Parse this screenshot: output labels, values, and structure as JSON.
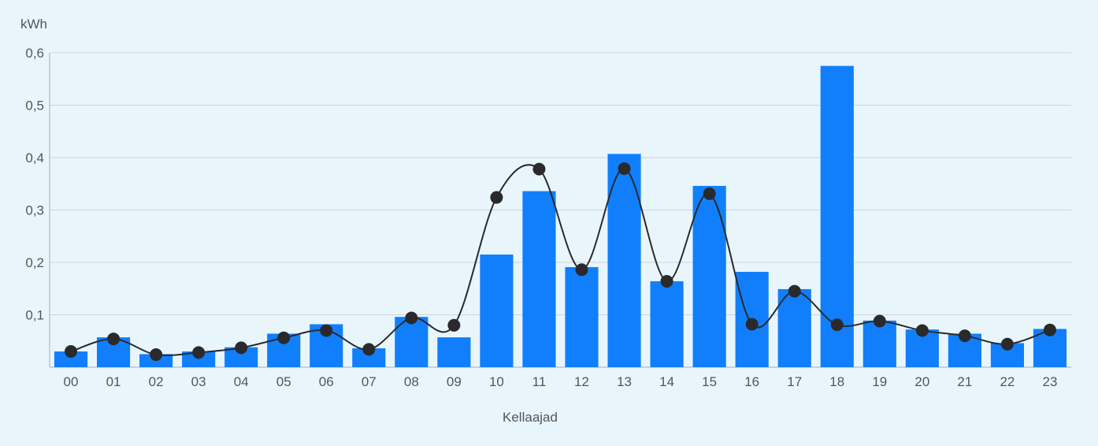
{
  "chart_data": {
    "type": "bar",
    "ylabel": "kWh",
    "xlabel": "Kellaajad",
    "ylim": [
      0,
      0.6
    ],
    "y_ticks": [
      "0,1",
      "0,2",
      "0,3",
      "0,4",
      "0,5",
      "0,6"
    ],
    "categories": [
      "00",
      "01",
      "02",
      "03",
      "04",
      "05",
      "06",
      "07",
      "08",
      "09",
      "10",
      "11",
      "12",
      "13",
      "14",
      "15",
      "16",
      "17",
      "18",
      "19",
      "20",
      "21",
      "22",
      "23"
    ],
    "series": [
      {
        "type": "bar",
        "color": "#117ffb",
        "values": [
          0.03,
          0.057,
          0.025,
          0.03,
          0.038,
          0.064,
          0.082,
          0.036,
          0.096,
          0.057,
          0.215,
          0.336,
          0.191,
          0.407,
          0.164,
          0.346,
          0.182,
          0.149,
          0.575,
          0.089,
          0.072,
          0.064,
          0.046,
          0.073
        ]
      },
      {
        "type": "line",
        "color": "#2a2a2d",
        "values": [
          0.03,
          0.054,
          0.024,
          0.028,
          0.037,
          0.056,
          0.07,
          0.034,
          0.094,
          0.08,
          0.324,
          0.378,
          0.186,
          0.379,
          0.164,
          0.331,
          0.082,
          0.145,
          0.081,
          0.088,
          0.07,
          0.06,
          0.044,
          0.071
        ]
      }
    ],
    "grid": true,
    "legend": "none"
  }
}
